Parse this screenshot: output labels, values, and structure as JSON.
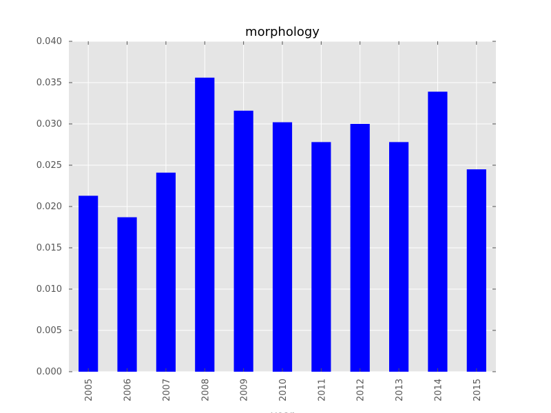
{
  "chart_data": {
    "type": "bar",
    "title": "morphology",
    "xlabel": "year",
    "ylabel": "",
    "categories": [
      "2005",
      "2006",
      "2007",
      "2008",
      "2009",
      "2010",
      "2011",
      "2012",
      "2013",
      "2014",
      "2015"
    ],
    "values": [
      0.0213,
      0.0187,
      0.0241,
      0.0356,
      0.0316,
      0.0302,
      0.0278,
      0.03,
      0.0278,
      0.0339,
      0.0245
    ],
    "ylim": [
      0,
      0.04
    ],
    "yticks": [
      "0.000",
      "0.005",
      "0.010",
      "0.015",
      "0.020",
      "0.025",
      "0.030",
      "0.035",
      "0.040"
    ],
    "ytick_values": [
      0,
      0.005,
      0.01,
      0.015,
      0.02,
      0.025,
      0.03,
      0.035,
      0.04
    ],
    "grid": true,
    "bar_color": "#0000ff",
    "background_color": "#e5e5e5",
    "grid_color": "#ffffff"
  }
}
